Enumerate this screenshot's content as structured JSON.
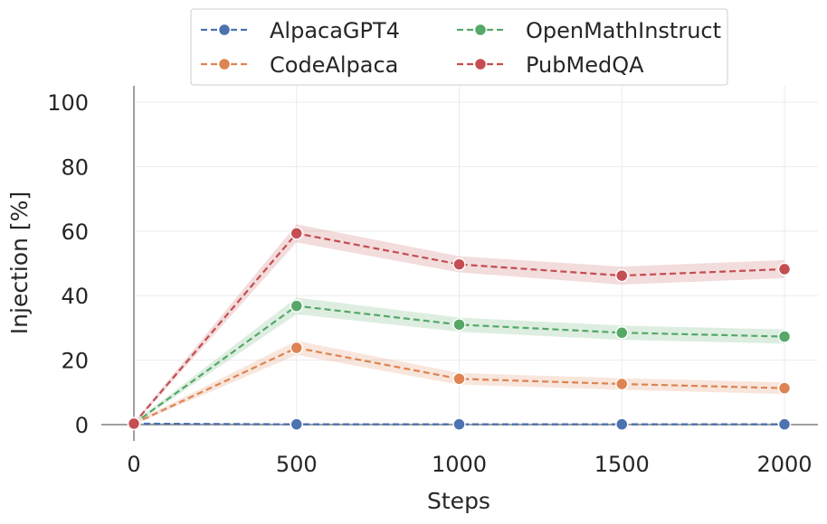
{
  "chart_data": {
    "type": "line",
    "title": "",
    "xlabel": "Steps",
    "ylabel": "Injection [%]",
    "x": [
      0,
      500,
      1000,
      1500,
      2000
    ],
    "x_tick_labels": [
      "0",
      "500",
      "1000",
      "1500",
      "2000"
    ],
    "xlim": [
      0,
      2000
    ],
    "ylim": [
      0,
      105
    ],
    "y_ticks": [
      0,
      20,
      40,
      60,
      80,
      100
    ],
    "y_tick_labels": [
      "0",
      "20",
      "40",
      "60",
      "80",
      "100"
    ],
    "grid": true,
    "legend": {
      "placement": "top-center",
      "columns": 2
    },
    "series": [
      {
        "name": "AlpacaGPT4",
        "color": "#4c72b0",
        "values": [
          0.3,
          0.1,
          0.1,
          0.1,
          0.1
        ],
        "band": [
          0.3,
          0.3,
          0.3,
          0.3,
          0.3
        ]
      },
      {
        "name": "CodeAlpaca",
        "color": "#dd8452",
        "values": [
          0.3,
          23.8,
          14.2,
          12.6,
          11.3
        ],
        "band": [
          0.5,
          2.2,
          1.8,
          1.8,
          1.8
        ]
      },
      {
        "name": "OpenMathInstruct",
        "color": "#55a868",
        "values": [
          0.3,
          36.8,
          31.0,
          28.5,
          27.3
        ],
        "band": [
          0.5,
          2.6,
          2.2,
          2.2,
          2.2
        ]
      },
      {
        "name": "PubMedQA",
        "color": "#c44e52",
        "values": [
          0.3,
          59.3,
          49.7,
          46.2,
          48.2
        ],
        "band": [
          0.5,
          2.8,
          2.5,
          2.8,
          2.8
        ]
      }
    ]
  }
}
